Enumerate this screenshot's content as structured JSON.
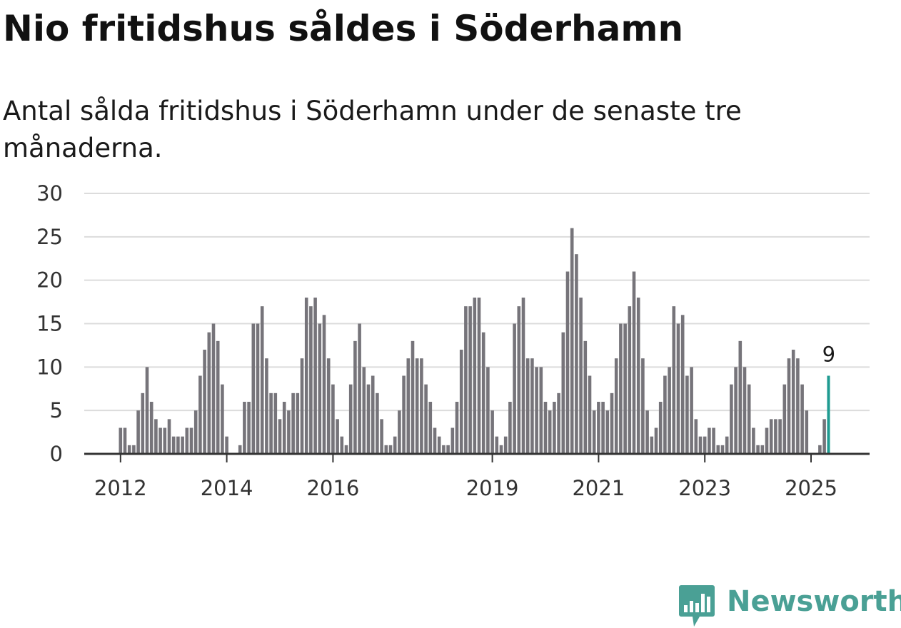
{
  "title": "Nio fritidshus såldes i Söderhamn",
  "subtitle": "Antal sålda fritidshus i Söderhamn under de senaste tre månaderna.",
  "logo": {
    "text": "Newsworthy",
    "icon": "newsworthy-chart-icon",
    "color": "#4aa095"
  },
  "chart_data": {
    "type": "bar",
    "title": "",
    "xlabel": "",
    "ylabel": "",
    "ylim": [
      0,
      30
    ],
    "yticks": [
      0,
      5,
      10,
      15,
      20,
      25,
      30
    ],
    "grid": true,
    "legend": "none",
    "bar_color": "#76747a",
    "highlight_color": "#1f9b91",
    "start_month": "2012-01",
    "xticks": [
      {
        "label": "2012",
        "month": "2012-01"
      },
      {
        "label": "2014",
        "month": "2014-01"
      },
      {
        "label": "2016",
        "month": "2016-01"
      },
      {
        "label": "2019",
        "month": "2019-01"
      },
      {
        "label": "2021",
        "month": "2021-01"
      },
      {
        "label": "2023",
        "month": "2023-01"
      },
      {
        "label": "2025",
        "month": "2025-01"
      }
    ],
    "values": [
      3,
      3,
      1,
      1,
      5,
      7,
      10,
      6,
      4,
      3,
      3,
      4,
      2,
      2,
      2,
      3,
      3,
      5,
      9,
      12,
      14,
      15,
      13,
      8,
      2,
      0,
      0,
      1,
      6,
      6,
      15,
      15,
      17,
      11,
      7,
      7,
      4,
      6,
      5,
      7,
      7,
      11,
      18,
      17,
      18,
      15,
      16,
      11,
      8,
      4,
      2,
      1,
      8,
      13,
      15,
      10,
      8,
      9,
      7,
      4,
      1,
      1,
      2,
      5,
      9,
      11,
      13,
      11,
      11,
      8,
      6,
      3,
      2,
      1,
      1,
      3,
      6,
      12,
      17,
      17,
      18,
      18,
      14,
      10,
      5,
      2,
      1,
      2,
      6,
      15,
      17,
      18,
      11,
      11,
      10,
      10,
      6,
      5,
      6,
      7,
      14,
      21,
      26,
      23,
      18,
      13,
      9,
      5,
      6,
      6,
      5,
      7,
      11,
      15,
      15,
      17,
      21,
      18,
      11,
      5,
      2,
      3,
      6,
      9,
      10,
      17,
      15,
      16,
      9,
      10,
      4,
      2,
      2,
      3,
      3,
      1,
      1,
      2,
      8,
      10,
      13,
      10,
      8,
      3,
      1,
      1,
      3,
      4,
      4,
      4,
      8,
      11,
      12,
      11,
      8,
      5,
      0,
      0,
      1,
      4,
      9
    ],
    "highlight": {
      "month": "2025-05",
      "value": 9,
      "label": "9"
    }
  }
}
